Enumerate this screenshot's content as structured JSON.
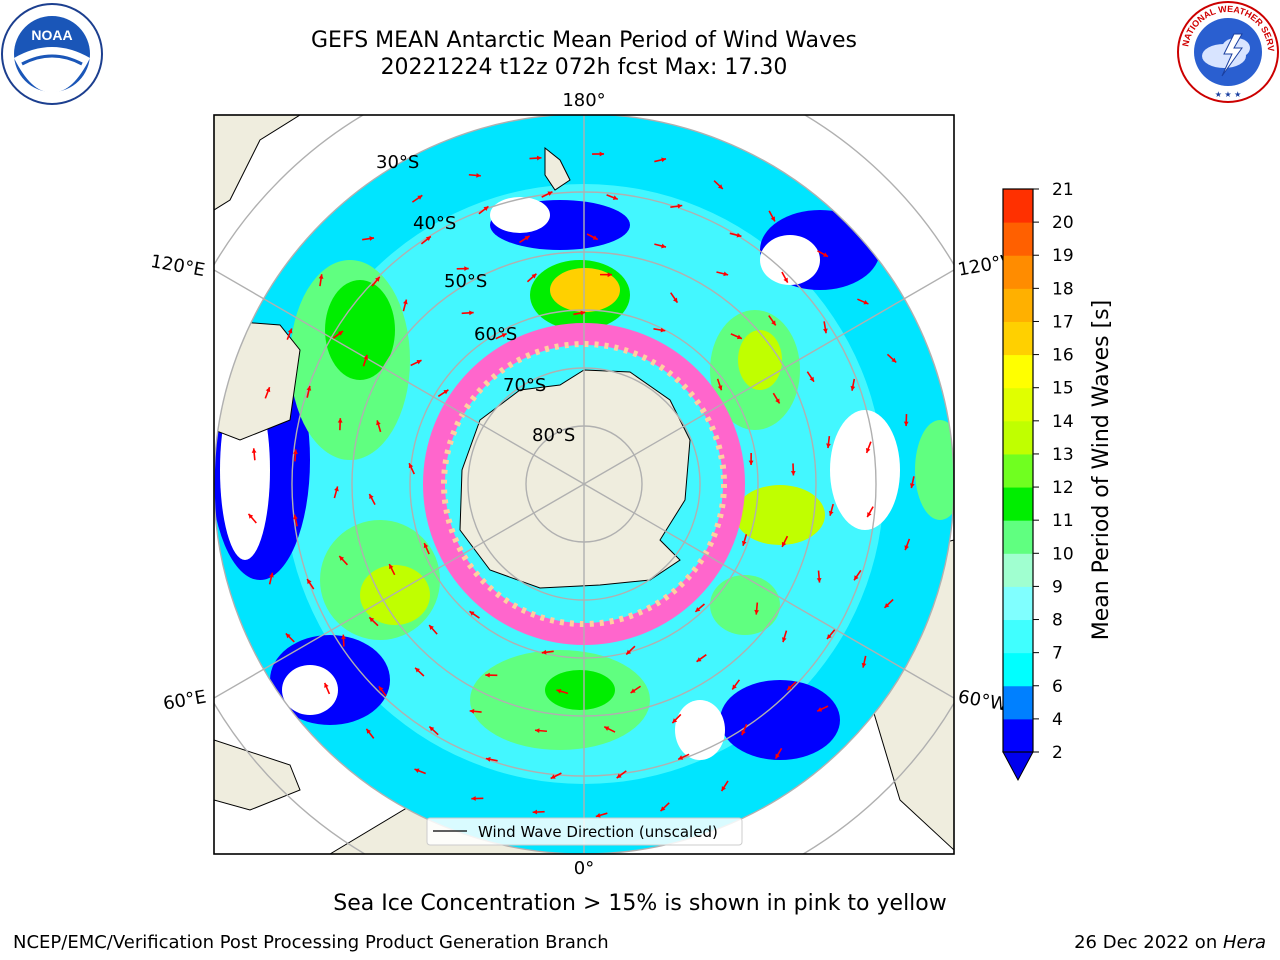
{
  "title_line1": "GEFS MEAN Antarctic Mean Period of Wind Waves",
  "title_line2": "20221224 t12z 072h fcst   Max: 17.30",
  "map": {
    "lon_labels": [
      "180°",
      "120°E",
      "120°W",
      "60°E",
      "60°W",
      "0°"
    ],
    "lat_labels": [
      "30°S",
      "40°S",
      "50°S",
      "60°S",
      "70°S",
      "80°S"
    ],
    "legend_label": "Wind Wave Direction (unscaled)",
    "colors": {
      "land": "#efedde",
      "ice": "#ff66cc",
      "arrow": "#ff0000",
      "grid": "#b0b0b0"
    }
  },
  "colorbar": {
    "label": "Mean Period of Wind Waves [s]",
    "ticks": [
      "2",
      "4",
      "6",
      "7",
      "8",
      "9",
      "10",
      "11",
      "12",
      "13",
      "14",
      "15",
      "16",
      "17",
      "18",
      "19",
      "20",
      "21"
    ],
    "colors": [
      "#0000ff",
      "#0080ff",
      "#00ffff",
      "#40ffff",
      "#80ffff",
      "#a0ffd0",
      "#60ff80",
      "#00ee00",
      "#70ff20",
      "#c0ff00",
      "#e0ff00",
      "#ffff00",
      "#ffd000",
      "#ffb000",
      "#ff8c00",
      "#ff6000",
      "#ff3000",
      "#ff0000"
    ],
    "under_color": "#0000ee"
  },
  "footer_note": "Sea Ice Concentration > 15% is shown in pink to yellow",
  "credit": "NCEP/EMC/Verification Post Processing Product Generation Branch",
  "date_prefix": "26 Dec 2022 on ",
  "date_host": "Hera",
  "logos": {
    "noaa_text": "NOAA",
    "nws_text": "NATIONAL WEATHER SERVICE"
  }
}
